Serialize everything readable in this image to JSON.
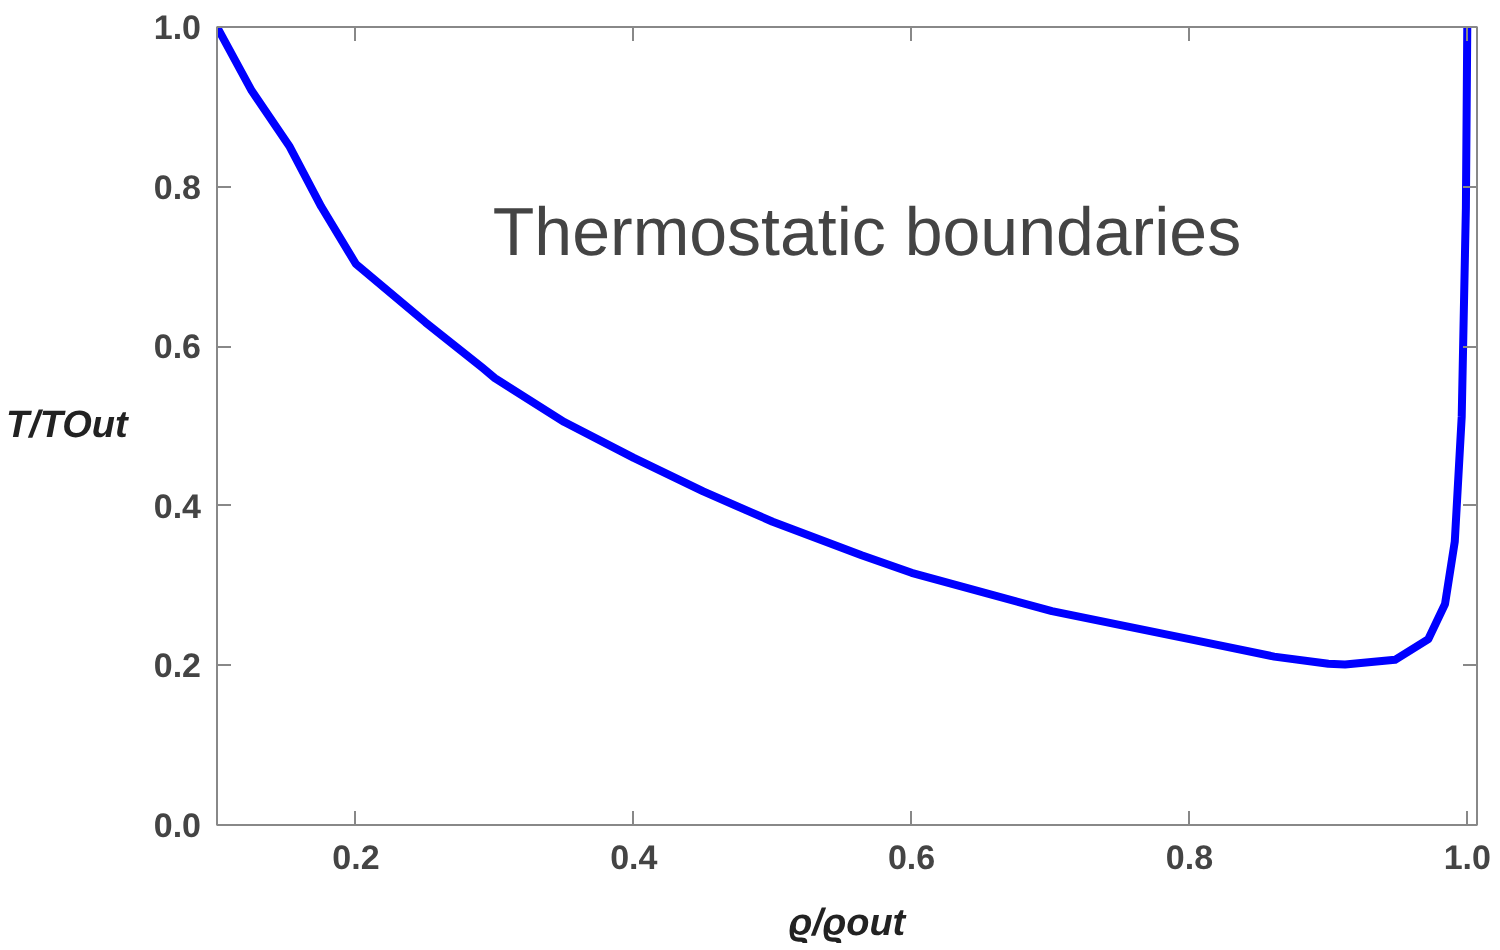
{
  "chart_data": {
    "type": "line",
    "xlabel": "ϱ/ϱout",
    "ylabel": "T/TOut",
    "annotations": [
      "Thermostatic boundaries"
    ],
    "x": [
      0.1,
      0.125,
      0.152,
      0.175,
      0.2,
      0.25,
      0.291,
      0.3,
      0.35,
      0.4,
      0.45,
      0.5,
      0.564,
      0.6,
      0.701,
      0.8,
      0.861,
      0.9,
      0.912,
      0.948,
      0.972,
      0.984,
      0.991,
      0.996,
      0.999,
      1.0
    ],
    "series": [
      {
        "color": "#0000ff",
        "values": [
          1.0,
          0.92,
          0.851,
          0.775,
          0.703,
          0.63,
          0.573,
          0.56,
          0.505,
          0.46,
          0.418,
          0.38,
          0.338,
          0.316,
          0.268,
          0.233,
          0.211,
          0.202,
          0.201,
          0.207,
          0.233,
          0.277,
          0.355,
          0.512,
          0.773,
          1.0
        ]
      }
    ],
    "xlim": [
      0.1,
      1.007
    ],
    "ylim": [
      0,
      1.0
    ],
    "xticks": [
      0.2,
      0.4,
      0.6,
      0.8,
      {
        "value": 1,
        "label": "1.0"
      }
    ],
    "yticks": [
      {
        "value": 0,
        "label": "0.0"
      },
      0.2,
      0.4,
      0.6,
      0.8,
      {
        "value": 1,
        "label": "1.0"
      }
    ],
    "grid": false,
    "marker": "none",
    "line_style": "solid"
  }
}
